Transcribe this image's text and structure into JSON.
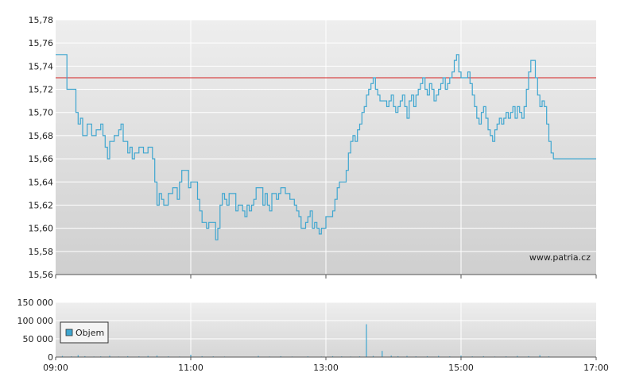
{
  "colors": {
    "price_line": "#3ea6d0",
    "reference_line": "#d62020",
    "grid": "#ffffff",
    "volume_bar": "#3ea6d0",
    "legend_swatch": "#3ea6d0",
    "plot_top": "#eeeeee",
    "plot_bottom": "#cfcfcf"
  },
  "watermark": "www.patria.cz",
  "legend": {
    "label": "Objem"
  },
  "chart_data": [
    {
      "type": "line",
      "name": "price",
      "x_ticks": [
        "09:00",
        "11:00",
        "13:00",
        "15:00",
        "17:00"
      ],
      "ylim": [
        15.56,
        15.78
      ],
      "y_ticks": [
        "15,56",
        "15,58",
        "15,60",
        "15,62",
        "15,64",
        "15,66",
        "15,68",
        "15,70",
        "15,72",
        "15,74",
        "15,76",
        "15,78"
      ],
      "reference_value": 15.73,
      "grid": true,
      "points": [
        [
          "09:00",
          15.75
        ],
        [
          "09:08",
          15.75
        ],
        [
          "09:10",
          15.72
        ],
        [
          "09:16",
          15.72
        ],
        [
          "09:18",
          15.7
        ],
        [
          "09:20",
          15.69
        ],
        [
          "09:22",
          15.695
        ],
        [
          "09:24",
          15.68
        ],
        [
          "09:28",
          15.69
        ],
        [
          "09:32",
          15.68
        ],
        [
          "09:36",
          15.685
        ],
        [
          "09:40",
          15.69
        ],
        [
          "09:42",
          15.68
        ],
        [
          "09:44",
          15.67
        ],
        [
          "09:46",
          15.66
        ],
        [
          "09:48",
          15.675
        ],
        [
          "09:52",
          15.68
        ],
        [
          "09:56",
          15.685
        ],
        [
          "09:58",
          15.69
        ],
        [
          "10:00",
          15.675
        ],
        [
          "10:04",
          15.665
        ],
        [
          "10:06",
          15.67
        ],
        [
          "10:08",
          15.66
        ],
        [
          "10:10",
          15.665
        ],
        [
          "10:14",
          15.67
        ],
        [
          "10:18",
          15.665
        ],
        [
          "10:22",
          15.67
        ],
        [
          "10:26",
          15.66
        ],
        [
          "10:28",
          15.64
        ],
        [
          "10:30",
          15.62
        ],
        [
          "10:32",
          15.63
        ],
        [
          "10:34",
          15.625
        ],
        [
          "10:36",
          15.62
        ],
        [
          "10:40",
          15.63
        ],
        [
          "10:44",
          15.635
        ],
        [
          "10:48",
          15.625
        ],
        [
          "10:50",
          15.64
        ],
        [
          "10:52",
          15.65
        ],
        [
          "10:56",
          15.65
        ],
        [
          "10:58",
          15.635
        ],
        [
          "11:00",
          15.64
        ],
        [
          "11:04",
          15.64
        ],
        [
          "11:06",
          15.625
        ],
        [
          "11:08",
          15.615
        ],
        [
          "11:10",
          15.605
        ],
        [
          "11:14",
          15.6
        ],
        [
          "11:16",
          15.605
        ],
        [
          "11:20",
          15.605
        ],
        [
          "11:22",
          15.59
        ],
        [
          "11:24",
          15.6
        ],
        [
          "11:26",
          15.62
        ],
        [
          "11:28",
          15.63
        ],
        [
          "11:30",
          15.625
        ],
        [
          "11:32",
          15.62
        ],
        [
          "11:34",
          15.63
        ],
        [
          "11:38",
          15.63
        ],
        [
          "11:40",
          15.615
        ],
        [
          "11:42",
          15.62
        ],
        [
          "11:46",
          15.615
        ],
        [
          "11:48",
          15.61
        ],
        [
          "11:50",
          15.62
        ],
        [
          "11:52",
          15.615
        ],
        [
          "11:54",
          15.62
        ],
        [
          "11:56",
          15.625
        ],
        [
          "11:58",
          15.635
        ],
        [
          "12:02",
          15.635
        ],
        [
          "12:04",
          15.62
        ],
        [
          "12:06",
          15.63
        ],
        [
          "12:08",
          15.62
        ],
        [
          "12:10",
          15.615
        ],
        [
          "12:12",
          15.63
        ],
        [
          "12:16",
          15.625
        ],
        [
          "12:18",
          15.63
        ],
        [
          "12:20",
          15.635
        ],
        [
          "12:24",
          15.63
        ],
        [
          "12:28",
          15.625
        ],
        [
          "12:30",
          15.625
        ],
        [
          "12:32",
          15.62
        ],
        [
          "12:34",
          15.615
        ],
        [
          "12:36",
          15.61
        ],
        [
          "12:38",
          15.6
        ],
        [
          "12:40",
          15.6
        ],
        [
          "12:42",
          15.605
        ],
        [
          "12:44",
          15.61
        ],
        [
          "12:46",
          15.615
        ],
        [
          "12:48",
          15.6
        ],
        [
          "12:50",
          15.605
        ],
        [
          "12:52",
          15.6
        ],
        [
          "12:54",
          15.595
        ],
        [
          "12:56",
          15.6
        ],
        [
          "12:58",
          15.6
        ],
        [
          "13:00",
          15.61
        ],
        [
          "13:04",
          15.61
        ],
        [
          "13:06",
          15.615
        ],
        [
          "13:08",
          15.625
        ],
        [
          "13:10",
          15.635
        ],
        [
          "13:12",
          15.64
        ],
        [
          "13:16",
          15.64
        ],
        [
          "13:18",
          15.65
        ],
        [
          "13:20",
          15.665
        ],
        [
          "13:22",
          15.675
        ],
        [
          "13:24",
          15.68
        ],
        [
          "13:26",
          15.675
        ],
        [
          "13:28",
          15.685
        ],
        [
          "13:30",
          15.69
        ],
        [
          "13:32",
          15.7
        ],
        [
          "13:34",
          15.705
        ],
        [
          "13:36",
          15.715
        ],
        [
          "13:38",
          15.72
        ],
        [
          "13:40",
          15.725
        ],
        [
          "13:42",
          15.73
        ],
        [
          "13:44",
          15.72
        ],
        [
          "13:46",
          15.715
        ],
        [
          "13:48",
          15.71
        ],
        [
          "13:52",
          15.71
        ],
        [
          "13:54",
          15.705
        ],
        [
          "13:56",
          15.71
        ],
        [
          "13:58",
          15.715
        ],
        [
          "14:00",
          15.705
        ],
        [
          "14:02",
          15.7
        ],
        [
          "14:04",
          15.705
        ],
        [
          "14:06",
          15.71
        ],
        [
          "14:08",
          15.715
        ],
        [
          "14:10",
          15.705
        ],
        [
          "14:12",
          15.695
        ],
        [
          "14:14",
          15.71
        ],
        [
          "14:16",
          15.715
        ],
        [
          "14:18",
          15.705
        ],
        [
          "14:20",
          15.715
        ],
        [
          "14:22",
          15.72
        ],
        [
          "14:24",
          15.725
        ],
        [
          "14:26",
          15.73
        ],
        [
          "14:28",
          15.72
        ],
        [
          "14:30",
          15.715
        ],
        [
          "14:32",
          15.725
        ],
        [
          "14:34",
          15.72
        ],
        [
          "14:36",
          15.71
        ],
        [
          "14:38",
          15.715
        ],
        [
          "14:40",
          15.72
        ],
        [
          "14:42",
          15.725
        ],
        [
          "14:44",
          15.73
        ],
        [
          "14:46",
          15.72
        ],
        [
          "14:48",
          15.725
        ],
        [
          "14:50",
          15.73
        ],
        [
          "14:52",
          15.735
        ],
        [
          "14:54",
          15.745
        ],
        [
          "14:56",
          15.75
        ],
        [
          "14:58",
          15.735
        ],
        [
          "15:00",
          15.73
        ],
        [
          "15:04",
          15.73
        ],
        [
          "15:06",
          15.735
        ],
        [
          "15:08",
          15.725
        ],
        [
          "15:10",
          15.715
        ],
        [
          "15:12",
          15.705
        ],
        [
          "15:14",
          15.695
        ],
        [
          "15:16",
          15.69
        ],
        [
          "15:18",
          15.7
        ],
        [
          "15:20",
          15.705
        ],
        [
          "15:22",
          15.695
        ],
        [
          "15:24",
          15.685
        ],
        [
          "15:26",
          15.68
        ],
        [
          "15:28",
          15.675
        ],
        [
          "15:30",
          15.685
        ],
        [
          "15:32",
          15.69
        ],
        [
          "15:34",
          15.695
        ],
        [
          "15:36",
          15.69
        ],
        [
          "15:38",
          15.695
        ],
        [
          "15:40",
          15.7
        ],
        [
          "15:42",
          15.695
        ],
        [
          "15:44",
          15.7
        ],
        [
          "15:46",
          15.705
        ],
        [
          "15:48",
          15.695
        ],
        [
          "15:50",
          15.705
        ],
        [
          "15:52",
          15.7
        ],
        [
          "15:54",
          15.695
        ],
        [
          "15:56",
          15.705
        ],
        [
          "15:58",
          15.72
        ],
        [
          "16:00",
          15.735
        ],
        [
          "16:02",
          15.745
        ],
        [
          "16:04",
          15.745
        ],
        [
          "16:06",
          15.73
        ],
        [
          "16:08",
          15.715
        ],
        [
          "16:10",
          15.705
        ],
        [
          "16:12",
          15.71
        ],
        [
          "16:14",
          15.705
        ],
        [
          "16:16",
          15.69
        ],
        [
          "16:18",
          15.675
        ],
        [
          "16:20",
          15.665
        ],
        [
          "16:22",
          15.66
        ],
        [
          "17:00",
          15.66
        ]
      ]
    },
    {
      "type": "bar",
      "name": "Objem",
      "x_ticks": [
        "09:00",
        "11:00",
        "13:00",
        "15:00",
        "17:00"
      ],
      "ylim": [
        0,
        150000
      ],
      "y_ticks": [
        "0",
        "50 000",
        "100 000",
        "150 000"
      ],
      "grid": true,
      "values": [
        [
          "09:06",
          3000
        ],
        [
          "09:14",
          2000
        ],
        [
          "09:20",
          5000
        ],
        [
          "09:26",
          2500
        ],
        [
          "09:34",
          1500
        ],
        [
          "09:40",
          2000
        ],
        [
          "09:48",
          3500
        ],
        [
          "09:56",
          1500
        ],
        [
          "10:04",
          2500
        ],
        [
          "10:14",
          2000
        ],
        [
          "10:22",
          3000
        ],
        [
          "10:30",
          4000
        ],
        [
          "10:40",
          2000
        ],
        [
          "10:50",
          1500
        ],
        [
          "11:00",
          6000
        ],
        [
          "11:10",
          2500
        ],
        [
          "11:20",
          2000
        ],
        [
          "11:30",
          1500
        ],
        [
          "11:44",
          1000
        ],
        [
          "12:00",
          3000
        ],
        [
          "12:10",
          1500
        ],
        [
          "12:20",
          2500
        ],
        [
          "12:30",
          1500
        ],
        [
          "12:44",
          2000
        ],
        [
          "12:56",
          1500
        ],
        [
          "13:06",
          2500
        ],
        [
          "13:14",
          2000
        ],
        [
          "13:22",
          1500
        ],
        [
          "13:30",
          2000
        ],
        [
          "13:36",
          90000
        ],
        [
          "13:42",
          3000
        ],
        [
          "13:50",
          17000
        ],
        [
          "13:58",
          4000
        ],
        [
          "14:04",
          2500
        ],
        [
          "14:12",
          3000
        ],
        [
          "14:20",
          2000
        ],
        [
          "14:30",
          2500
        ],
        [
          "14:40",
          3000
        ],
        [
          "14:50",
          2000
        ],
        [
          "15:00",
          4000
        ],
        [
          "15:10",
          2000
        ],
        [
          "15:20",
          2500
        ],
        [
          "15:30",
          1500
        ],
        [
          "15:40",
          2000
        ],
        [
          "15:50",
          3000
        ],
        [
          "16:00",
          2500
        ],
        [
          "16:10",
          5000
        ],
        [
          "16:18",
          2000
        ]
      ]
    }
  ]
}
